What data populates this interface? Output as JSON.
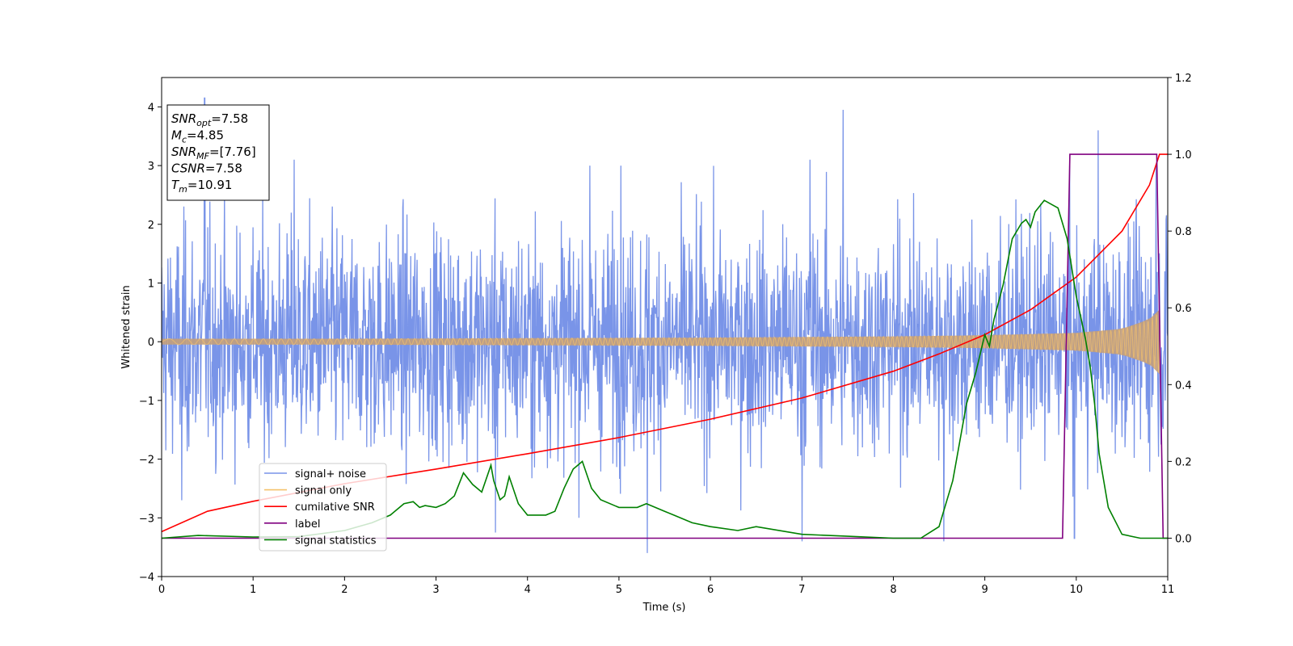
{
  "chart_data": {
    "type": "line",
    "xlabel": "Time (s)",
    "ylabel": "Whitened strain",
    "xlim": [
      0,
      11
    ],
    "ylim": [
      -4,
      4.5
    ],
    "y2lim": [
      -0.1,
      1.2
    ],
    "x_ticks": [
      0,
      1,
      2,
      3,
      4,
      5,
      6,
      7,
      8,
      9,
      10,
      11
    ],
    "y_ticks": [
      -4,
      -3,
      -2,
      -1,
      0,
      1,
      2,
      3,
      4
    ],
    "y2_ticks": [
      0.0,
      0.2,
      0.4,
      0.6,
      0.8,
      1.0,
      1.2
    ],
    "y2_tick_labels": [
      "0.0",
      "0.2",
      "0.4",
      "0.6",
      "0.8",
      "1.0",
      "1.2"
    ],
    "x_tick_labels": [
      "0",
      "1",
      "2",
      "3",
      "4",
      "5",
      "6",
      "7",
      "8",
      "9",
      "10",
      "11"
    ],
    "y_tick_labels": [
      "−4",
      "−3",
      "−2",
      "−1",
      "0",
      "1",
      "2",
      "3",
      "4"
    ],
    "grid": false,
    "legend_position": "lower-left",
    "annotation_box": {
      "lines": [
        {
          "base": "SNR",
          "sub": "opt",
          "rest": "=7.58"
        },
        {
          "base": "M",
          "sub": "c",
          "rest": "=4.85"
        },
        {
          "base": "SNR",
          "sub": "MF",
          "rest": "=[7.76]"
        },
        {
          "base": "CSNR",
          "sub": "",
          "rest": "=7.58"
        },
        {
          "base": "T",
          "sub": "m",
          "rest": "=10.91"
        }
      ]
    },
    "series": [
      {
        "name": "signal+ noise",
        "color": "#7994e8",
        "axis": "left",
        "noise_band": {
          "typical_abs": 1.6,
          "envelope_max": 3.0
        },
        "peaks": [
          {
            "x": 0.47,
            "y": 4.15
          },
          {
            "x": 1.45,
            "y": 3.1
          },
          {
            "x": 3.65,
            "y": 3.1
          },
          {
            "x": 4.68,
            "y": 3.0
          },
          {
            "x": 5.02,
            "y": 3.0
          },
          {
            "x": 7.09,
            "y": 3.1
          },
          {
            "x": 7.45,
            "y": 3.95
          },
          {
            "x": 10.24,
            "y": 3.6
          },
          {
            "x": 10.87,
            "y": 3.0
          },
          {
            "x": 5.31,
            "y": -3.6
          },
          {
            "x": 3.65,
            "y": -3.25
          },
          {
            "x": 7.0,
            "y": -3.4
          },
          {
            "x": 8.55,
            "y": -3.4
          },
          {
            "x": 9.98,
            "y": -3.35
          },
          {
            "x": 0.22,
            "y": -2.7
          }
        ]
      },
      {
        "name": "signal only",
        "color": "#f5c26b",
        "axis": "left",
        "chirp_amplitude": {
          "x": [
            0,
            2,
            4,
            6,
            8,
            9,
            10,
            10.5,
            10.8,
            10.91
          ],
          "y": [
            0.05,
            0.05,
            0.06,
            0.07,
            0.09,
            0.11,
            0.15,
            0.22,
            0.38,
            0.55
          ]
        }
      },
      {
        "name": "cumilative SNR",
        "color": "#ff0000",
        "axis": "right",
        "x": [
          0,
          0.5,
          1,
          2,
          3,
          4,
          5,
          6,
          7,
          8,
          8.5,
          9,
          9.5,
          10,
          10.5,
          10.8,
          10.91,
          11
        ],
        "y": [
          0.017,
          0.07,
          0.096,
          0.142,
          0.18,
          0.22,
          0.262,
          0.31,
          0.365,
          0.435,
          0.48,
          0.53,
          0.595,
          0.68,
          0.8,
          0.92,
          1.0,
          1.0
        ]
      },
      {
        "name": "label",
        "color": "#800080",
        "axis": "right",
        "x": [
          0,
          9.85,
          9.93,
          10.88,
          10.95,
          11
        ],
        "y": [
          0,
          0,
          1,
          1,
          0,
          0
        ]
      },
      {
        "name": "signal statistics",
        "color": "#008000",
        "axis": "right",
        "x": [
          0,
          0.4,
          1,
          1.5,
          2,
          2.3,
          2.5,
          2.65,
          2.75,
          2.82,
          2.88,
          3.0,
          3.1,
          3.2,
          3.3,
          3.4,
          3.5,
          3.6,
          3.63,
          3.7,
          3.75,
          3.8,
          3.9,
          4.0,
          4.2,
          4.3,
          4.4,
          4.5,
          4.55,
          4.6,
          4.7,
          4.8,
          5.0,
          5.2,
          5.3,
          5.5,
          5.6,
          5.8,
          6.0,
          6.3,
          6.5,
          7.0,
          7.5,
          8.0,
          8.3,
          8.5,
          8.65,
          8.8,
          8.9,
          9.0,
          9.05,
          9.1,
          9.2,
          9.3,
          9.4,
          9.45,
          9.5,
          9.55,
          9.65,
          9.8,
          9.9,
          10.0,
          10.1,
          10.15,
          10.2,
          10.25,
          10.35,
          10.5,
          10.7,
          11
        ],
        "y": [
          0.0,
          0.007,
          0.003,
          0.004,
          0.02,
          0.04,
          0.06,
          0.09,
          0.095,
          0.08,
          0.085,
          0.08,
          0.09,
          0.11,
          0.17,
          0.14,
          0.12,
          0.19,
          0.15,
          0.1,
          0.11,
          0.16,
          0.09,
          0.06,
          0.06,
          0.07,
          0.13,
          0.18,
          0.19,
          0.2,
          0.13,
          0.1,
          0.08,
          0.08,
          0.09,
          0.07,
          0.06,
          0.04,
          0.03,
          0.02,
          0.03,
          0.01,
          0.005,
          0.0,
          0.0,
          0.03,
          0.15,
          0.35,
          0.43,
          0.53,
          0.5,
          0.57,
          0.66,
          0.78,
          0.82,
          0.83,
          0.81,
          0.85,
          0.88,
          0.86,
          0.78,
          0.63,
          0.52,
          0.45,
          0.35,
          0.22,
          0.08,
          0.01,
          0.0,
          0.0
        ]
      }
    ]
  }
}
